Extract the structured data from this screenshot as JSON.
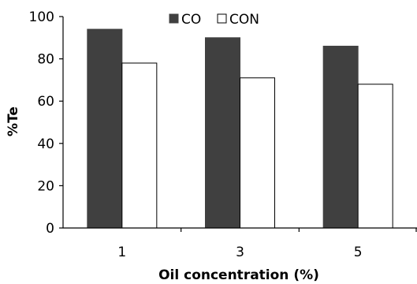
{
  "chart_data": {
    "type": "bar",
    "categories": [
      "1",
      "3",
      "5"
    ],
    "series": [
      {
        "name": "CO",
        "values": [
          94,
          90,
          86
        ],
        "color": "#404040"
      },
      {
        "name": "CON",
        "values": [
          78,
          71,
          68
        ],
        "color": "#ffffff"
      }
    ],
    "xlabel": "Oil concentration (%)",
    "ylabel": "%Te",
    "ylim": [
      0,
      100
    ],
    "yticks": [
      "0",
      "20",
      "40",
      "60",
      "80",
      "100"
    ],
    "grid": false,
    "legend": "top-center"
  }
}
